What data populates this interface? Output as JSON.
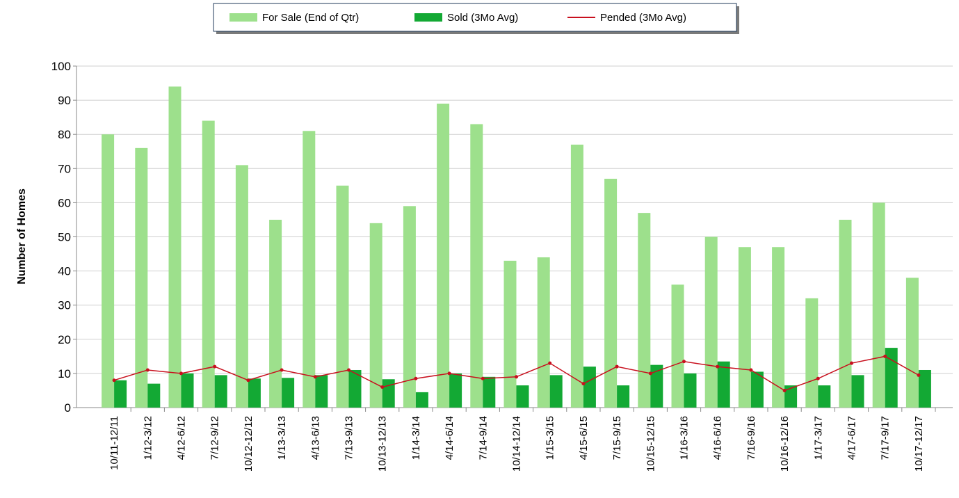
{
  "chart_data": {
    "type": "bar-line",
    "y_label": "Number of Homes",
    "categories": [
      "10/11-12/11",
      "1/12-3/12",
      "4/12-6/12",
      "7/12-9/12",
      "10/12-12/12",
      "1/13-3/13",
      "4/13-6/13",
      "7/13-9/13",
      "10/13-12/13",
      "1/14-3/14",
      "4/14-6/14",
      "7/14-9/14",
      "10/14-12/14",
      "1/15-3/15",
      "4/15-6/15",
      "7/15-9/15",
      "10/15-12/15",
      "1/16-3/16",
      "4/16-6/16",
      "7/16-9/16",
      "10/16-12/16",
      "1/17-3/17",
      "4/17-6/17",
      "7/17-9/17",
      "10/17-12/17"
    ],
    "series": [
      {
        "name": "For Sale (End of Qtr)",
        "type": "bar",
        "color": "#9de08c",
        "values": [
          80,
          76,
          94,
          84,
          71,
          55,
          81,
          65,
          54,
          59,
          89,
          83,
          43,
          44,
          77,
          67,
          57,
          36,
          50,
          47,
          47,
          32,
          55,
          60,
          38
        ]
      },
      {
        "name": "Sold (3Mo Avg)",
        "type": "bar",
        "color": "#13a934",
        "values": [
          8,
          7,
          10,
          9.5,
          8.5,
          8.7,
          9.5,
          11,
          8.3,
          4.5,
          10,
          9,
          6.5,
          9.5,
          12,
          6.5,
          12.5,
          10,
          13.5,
          10.5,
          6.5,
          6.5,
          9.5,
          17.5,
          11
        ]
      },
      {
        "name": "Pended (3Mo Avg)",
        "type": "line",
        "color": "#c8101e",
        "values": [
          8,
          11,
          10,
          12,
          8,
          11,
          9,
          11,
          6,
          8.5,
          10,
          8.5,
          9,
          13,
          7,
          12,
          10,
          13.5,
          12,
          11,
          5,
          8.5,
          13,
          15,
          9.5
        ]
      }
    ],
    "ylim": [
      0,
      100
    ],
    "yticks": [
      0,
      10,
      20,
      30,
      40,
      50,
      60,
      70,
      80,
      90,
      100
    ],
    "grid": true
  }
}
